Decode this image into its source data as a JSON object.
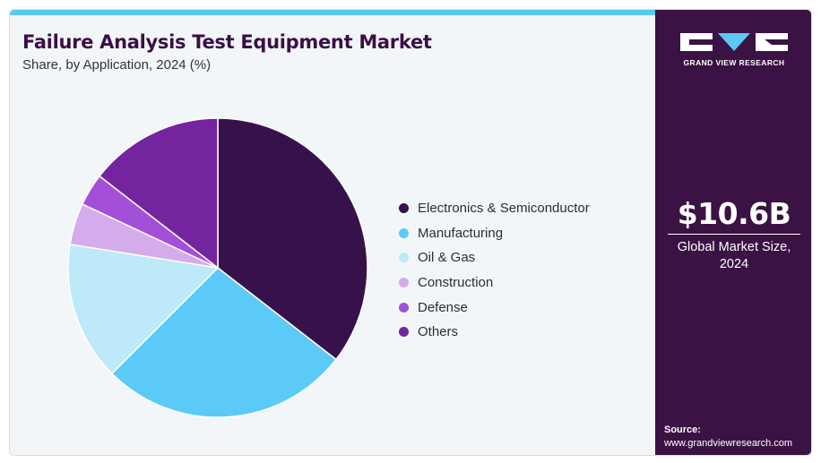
{
  "header": {
    "title": "Failure Analysis Test Equipment Market",
    "subtitle": "Share, by Application, 2024 (%)"
  },
  "chart_data": {
    "type": "pie",
    "title": "Failure Analysis Test Equipment Market",
    "subtitle": "Share, by Application, 2024 (%)",
    "categories": [
      "Electronics & Semiconductor",
      "Manufacturing",
      "Oil & Gas",
      "Construction",
      "Defense",
      "Others"
    ],
    "values": [
      35.5,
      27.0,
      15.0,
      4.5,
      3.5,
      14.5
    ],
    "colors": [
      "#37124a",
      "#5bcaf7",
      "#bde9f9",
      "#d5aceb",
      "#a44fd8",
      "#7524a0"
    ],
    "start_angle_deg": 0,
    "direction": "clockwise",
    "legend_position": "right"
  },
  "sidebar": {
    "logo_text": "GRAND VIEW RESEARCH",
    "market_value": "$10.6B",
    "market_label_line1": "Global Market Size,",
    "market_label_line2": "2024",
    "source_title": "Source:",
    "source_url": "www.grandviewresearch.com",
    "accent_color": "#3b1244"
  }
}
